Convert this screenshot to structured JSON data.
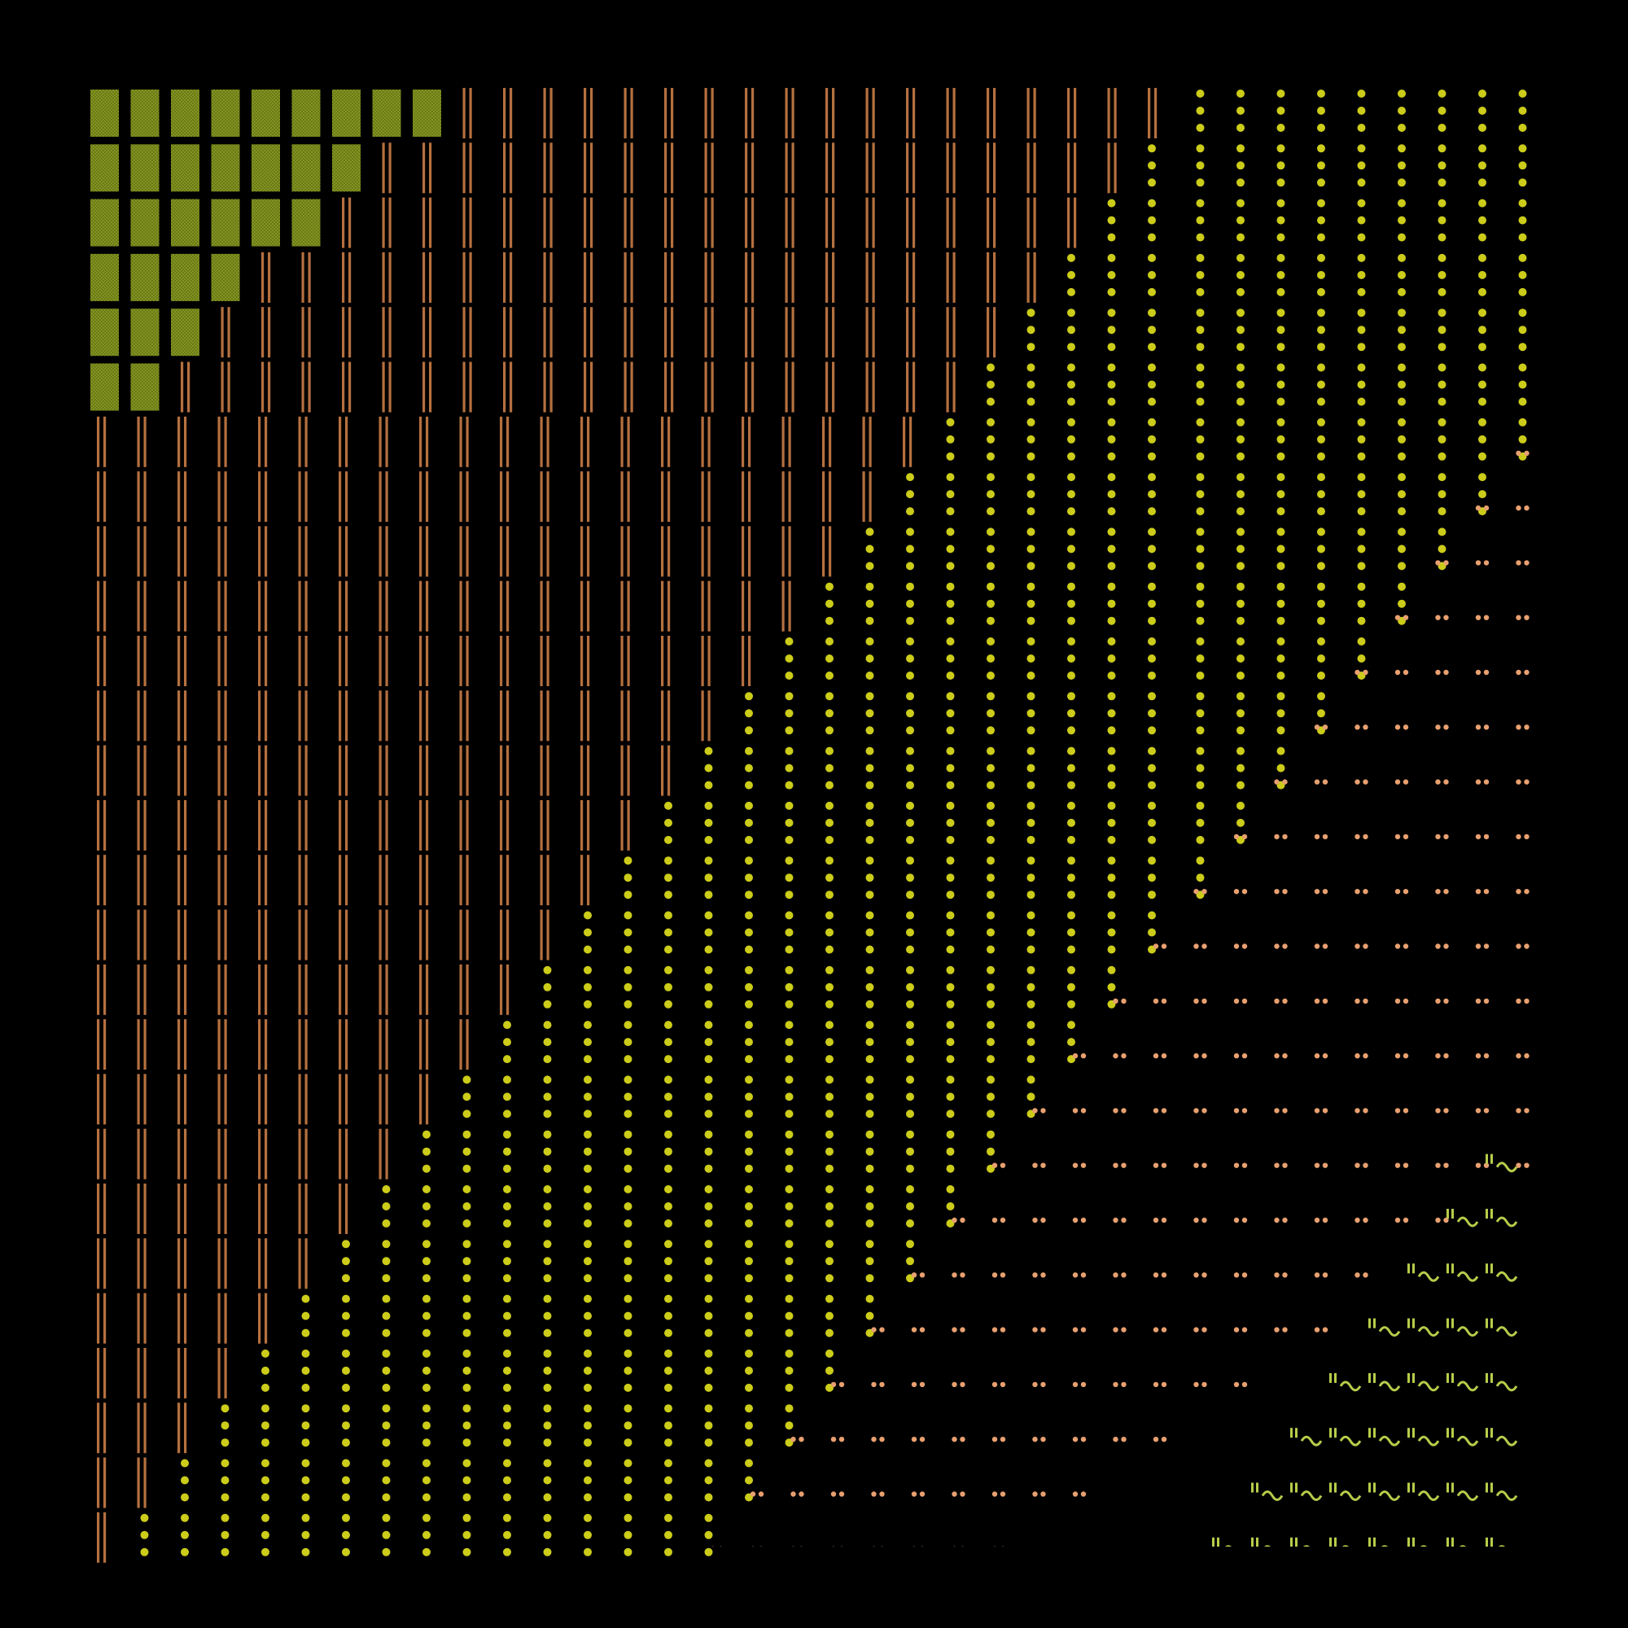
{
  "pattern": {
    "background": "#000000",
    "grid_columns": 37,
    "grid_rows": 27,
    "regions": [
      {
        "name": "olive-blocks",
        "glyph": "textured-square",
        "color": "#6b7a16",
        "texture_color": "#93a52a"
      },
      {
        "name": "copper-bars",
        "glyph": "double-vertical-bar",
        "color": "#b5703f"
      },
      {
        "name": "yellow-dots",
        "glyph": "dot-column",
        "color": "#cccc1a"
      },
      {
        "name": "peach-dot-rows",
        "glyph": "dotted-row",
        "color": "#e8a070"
      },
      {
        "name": "wave-marks",
        "glyph": "tilde-wave",
        "color": "#b8cc4a"
      }
    ]
  }
}
